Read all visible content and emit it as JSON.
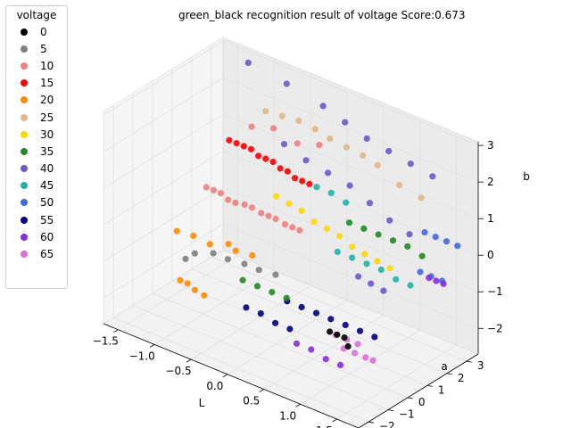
{
  "chart_data": {
    "type": "scatter3d",
    "title": "green_black recognition result of voltage Score:0.673",
    "xlabel": "L",
    "ylabel": "a",
    "zlabel": "b",
    "xlim": [
      -1.7,
      1.8
    ],
    "ylim": [
      -2.5,
      3.6
    ],
    "zlim": [
      -2.7,
      3.1
    ],
    "xticks": [
      "−1.5",
      "−1.0",
      "−0.5",
      "0.0",
      "0.5",
      "1.0",
      "1.5"
    ],
    "xtick_values": [
      -1.5,
      -1.0,
      -0.5,
      0.0,
      0.5,
      1.0,
      1.5
    ],
    "yticks": [
      "−2",
      "−1",
      "0",
      "1",
      "2",
      "3"
    ],
    "ytick_values": [
      -2,
      -1,
      0,
      1,
      2,
      3
    ],
    "zticks": [
      "−2",
      "−1",
      "0",
      "1",
      "2",
      "3"
    ],
    "ztick_values": [
      -2,
      -1,
      0,
      1,
      2,
      3
    ],
    "legend_title": "voltage",
    "legend_position": "upper-left outside",
    "series": [
      {
        "name": "0",
        "color": "#000000",
        "points": [
          [
            1.35,
            -2.3,
            -0.5
          ],
          [
            1.45,
            -2.3,
            -0.5
          ],
          [
            1.55,
            -2.3,
            -0.5
          ],
          [
            1.6,
            -2.3,
            -0.7
          ]
        ]
      },
      {
        "name": "5",
        "color": "#808080",
        "points": [
          [
            -1.3,
            0.2,
            -1.5
          ],
          [
            -1.2,
            0.3,
            -1.3
          ],
          [
            -1.0,
            0.5,
            -1.2
          ],
          [
            -0.8,
            0.5,
            -1.2
          ],
          [
            -0.6,
            0.6,
            -1.2
          ],
          [
            -0.4,
            0.6,
            -1.2
          ],
          [
            -0.2,
            0.7,
            -1.2
          ]
        ]
      },
      {
        "name": "10",
        "color": "#f08080",
        "points": [
          [
            -1.5,
            2.0,
            -0.3
          ],
          [
            -1.4,
            2.0,
            -0.3
          ],
          [
            -1.3,
            2.0,
            -0.3
          ],
          [
            -1.2,
            2.0,
            -0.4
          ],
          [
            -1.1,
            2.0,
            -0.4
          ],
          [
            -1.0,
            2.1,
            -0.4
          ],
          [
            -0.9,
            2.1,
            -0.4
          ],
          [
            -0.8,
            2.2,
            -0.5
          ],
          [
            -0.7,
            2.2,
            -0.5
          ],
          [
            -0.6,
            2.2,
            -0.5
          ],
          [
            -0.5,
            2.3,
            -0.6
          ],
          [
            -0.4,
            2.3,
            -0.6
          ],
          [
            -0.3,
            2.3,
            -0.6
          ],
          [
            -1.2,
            3.2,
            1.2
          ],
          [
            -0.9,
            3.2,
            1.4
          ],
          [
            -0.6,
            3.3,
            1.2
          ],
          [
            -0.3,
            3.3,
            1.4
          ]
        ]
      },
      {
        "name": "15",
        "color": "#ff0000",
        "points": [
          [
            -1.4,
            2.8,
            0.8
          ],
          [
            -1.3,
            2.8,
            0.8
          ],
          [
            -1.2,
            2.8,
            0.8
          ],
          [
            -1.1,
            2.8,
            0.8
          ],
          [
            -1.0,
            2.8,
            0.7
          ],
          [
            -0.9,
            2.8,
            0.7
          ],
          [
            -0.8,
            2.8,
            0.7
          ],
          [
            -0.7,
            2.8,
            0.6
          ],
          [
            -0.6,
            2.8,
            0.6
          ],
          [
            -0.5,
            2.8,
            0.5
          ],
          [
            -0.4,
            2.8,
            0.5
          ],
          [
            -0.3,
            2.8,
            0.5
          ]
        ]
      },
      {
        "name": "20",
        "color": "#ff8c00",
        "points": [
          [
            -1.4,
            0.3,
            -2.2
          ],
          [
            -1.3,
            0.3,
            -2.2
          ],
          [
            -1.2,
            0.3,
            -2.3
          ],
          [
            -1.1,
            0.4,
            -2.4
          ],
          [
            -1.5,
            0.5,
            -1.0
          ],
          [
            -1.3,
            0.6,
            -1.0
          ],
          [
            -1.1,
            0.7,
            -1.1
          ],
          [
            -0.9,
            0.9,
            -1.0
          ],
          [
            -0.8,
            0.9,
            -1.1
          ],
          [
            -0.6,
            1.0,
            -1.1
          ]
        ]
      },
      {
        "name": "25",
        "color": "#deb887",
        "points": [
          [
            -0.9,
            2.8,
            2.0
          ],
          [
            -0.7,
            2.9,
            2.0
          ],
          [
            -0.5,
            3.0,
            2.0
          ],
          [
            -0.3,
            3.1,
            1.9
          ],
          [
            -0.1,
            3.1,
            1.8
          ],
          [
            0.1,
            3.2,
            1.7
          ],
          [
            0.3,
            3.3,
            1.6
          ],
          [
            0.5,
            3.3,
            1.5
          ],
          [
            0.8,
            3.3,
            1.2
          ],
          [
            1.1,
            3.3,
            1.1
          ]
        ]
      },
      {
        "name": "30",
        "color": "#ffd700",
        "points": [
          [
            -0.7,
            2.6,
            -0.1
          ],
          [
            -0.5,
            2.5,
            -0.1
          ],
          [
            -0.3,
            2.4,
            -0.1
          ],
          [
            -0.1,
            2.3,
            -0.2
          ],
          [
            0.1,
            2.2,
            -0.2
          ],
          [
            0.3,
            2.1,
            -0.2
          ],
          [
            0.5,
            2.0,
            -0.3
          ],
          [
            0.7,
            1.9,
            -0.3
          ],
          [
            0.9,
            1.8,
            -0.3
          ],
          [
            1.1,
            1.7,
            -0.3
          ]
        ]
      },
      {
        "name": "35",
        "color": "#228b22",
        "points": [
          [
            -0.3,
            -0.6,
            -1.0
          ],
          [
            -0.1,
            -0.6,
            -1.0
          ],
          [
            0.1,
            -0.6,
            -1.0
          ],
          [
            0.3,
            -0.6,
            -1.0
          ],
          [
            0.3,
            2.6,
            0.0
          ],
          [
            0.5,
            2.6,
            0.0
          ],
          [
            0.7,
            2.6,
            0.0
          ],
          [
            0.9,
            2.6,
            0.0
          ],
          [
            1.1,
            2.6,
            0.0
          ],
          [
            1.3,
            2.6,
            -0.1
          ]
        ]
      },
      {
        "name": "40",
        "color": "#6a5acd",
        "points": [
          [
            -1.3,
            3.4,
            2.8
          ],
          [
            -0.8,
            3.5,
            2.6
          ],
          [
            -0.3,
            3.5,
            2.4
          ],
          [
            0.0,
            3.5,
            2.2
          ],
          [
            0.3,
            3.5,
            2.0
          ],
          [
            0.6,
            3.5,
            1.9
          ],
          [
            0.9,
            3.5,
            1.8
          ],
          [
            1.2,
            3.5,
            1.7
          ],
          [
            -0.7,
            3.0,
            1.2
          ],
          [
            -0.4,
            3.0,
            1.0
          ],
          [
            -0.1,
            3.0,
            0.9
          ],
          [
            0.2,
            3.0,
            0.8
          ],
          [
            0.5,
            2.9,
            0.6
          ],
          [
            0.8,
            2.8,
            0.4
          ],
          [
            1.1,
            2.7,
            0.3
          ],
          [
            0.8,
            1.2,
            -0.6
          ],
          [
            1.0,
            1.1,
            -0.6
          ],
          [
            1.2,
            1.0,
            -0.6
          ]
        ]
      },
      {
        "name": "45",
        "color": "#20b2aa",
        "points": [
          [
            -0.2,
            2.8,
            0.5
          ],
          [
            0.0,
            2.8,
            0.5
          ],
          [
            0.2,
            2.8,
            0.4
          ],
          [
            0.3,
            2.0,
            -0.6
          ],
          [
            0.5,
            2.0,
            -0.6
          ],
          [
            0.7,
            2.0,
            -0.6
          ],
          [
            0.9,
            2.0,
            -0.6
          ],
          [
            1.1,
            2.0,
            -0.7
          ],
          [
            1.3,
            2.0,
            -0.7
          ]
        ]
      },
      {
        "name": "50",
        "color": "#4169e1",
        "points": [
          [
            1.2,
            3.1,
            0.3
          ],
          [
            1.35,
            3.1,
            0.3
          ],
          [
            1.5,
            3.1,
            0.3
          ],
          [
            1.65,
            3.1,
            0.3
          ],
          [
            1.3,
            2.5,
            -0.5
          ],
          [
            1.45,
            2.5,
            -0.5
          ],
          [
            1.6,
            2.5,
            -0.5
          ]
        ]
      },
      {
        "name": "55",
        "color": "#000080",
        "points": [
          [
            0.2,
            -0.2,
            -1.3
          ],
          [
            0.4,
            -0.2,
            -1.3
          ],
          [
            0.6,
            -0.2,
            -1.3
          ],
          [
            0.8,
            -0.2,
            -1.3
          ],
          [
            1.0,
            -0.2,
            -1.3
          ],
          [
            1.2,
            -0.2,
            -1.3
          ],
          [
            1.4,
            -0.2,
            -1.3
          ],
          [
            -0.2,
            -0.8,
            -1.6
          ],
          [
            0.0,
            -0.8,
            -1.6
          ],
          [
            0.2,
            -0.8,
            -1.7
          ],
          [
            0.4,
            -0.8,
            -1.7
          ]
        ]
      },
      {
        "name": "60",
        "color": "#8a2be2",
        "points": [
          [
            0.6,
            -1.2,
            -1.8
          ],
          [
            0.8,
            -1.2,
            -1.8
          ],
          [
            1.0,
            -1.2,
            -1.9
          ],
          [
            1.2,
            -1.2,
            -1.9
          ],
          [
            1.5,
            2.2,
            -0.4
          ],
          [
            1.6,
            2.2,
            -0.4
          ],
          [
            1.7,
            2.2,
            -0.4
          ]
        ]
      },
      {
        "name": "65",
        "color": "#da70d6",
        "points": [
          [
            1.3,
            -1.4,
            -1.3
          ],
          [
            1.45,
            -1.4,
            -1.3
          ],
          [
            1.6,
            -1.4,
            -1.3
          ],
          [
            1.7,
            -1.4,
            -1.3
          ],
          [
            1.3,
            -1.8,
            -0.8
          ],
          [
            1.45,
            -1.8,
            -0.8
          ],
          [
            1.6,
            -1.8,
            -0.8
          ]
        ]
      }
    ]
  }
}
